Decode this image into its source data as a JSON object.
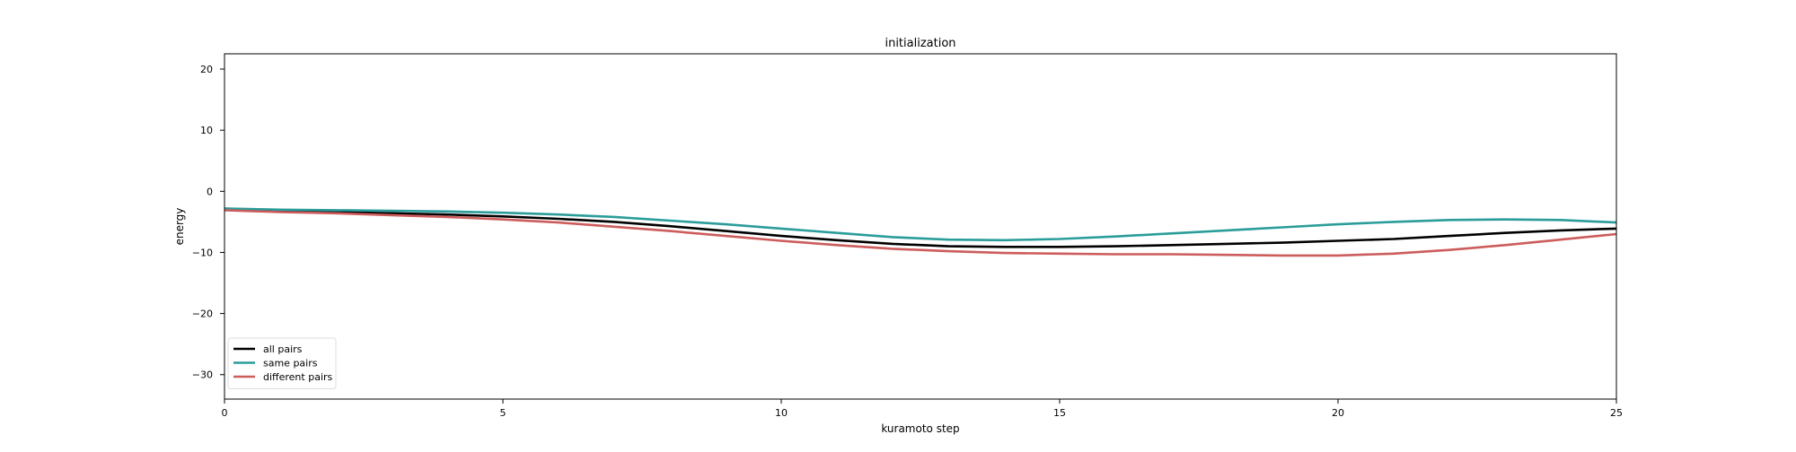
{
  "chart_data": {
    "type": "line",
    "title": "initialization",
    "xlabel": "kuramoto step",
    "ylabel": "energy",
    "xlim": [
      0,
      25
    ],
    "ylim": [
      -34,
      22.5
    ],
    "xticks": [
      0,
      5,
      10,
      15,
      20,
      25
    ],
    "yticks": [
      20,
      10,
      0,
      -10,
      -20,
      -30
    ],
    "xtick_labels": [
      "0",
      "5",
      "10",
      "15",
      "20",
      "25"
    ],
    "ytick_labels": [
      "20",
      "10",
      "0",
      "−10",
      "−20",
      "−30"
    ],
    "grid": false,
    "legend_position": "lower-left",
    "x": [
      0,
      1,
      2,
      3,
      4,
      5,
      6,
      7,
      8,
      9,
      10,
      11,
      12,
      13,
      14,
      15,
      16,
      17,
      18,
      19,
      20,
      21,
      22,
      23,
      24,
      25
    ],
    "series": [
      {
        "name": "all pairs",
        "color": "#000000",
        "values": [
          -3.0,
          -3.2,
          -3.4,
          -3.6,
          -3.8,
          -4.1,
          -4.5,
          -5.0,
          -5.7,
          -6.5,
          -7.3,
          -8.0,
          -8.6,
          -9.0,
          -9.1,
          -9.1,
          -9.0,
          -8.8,
          -8.6,
          -8.4,
          -8.1,
          -7.8,
          -7.3,
          -6.8,
          -6.4,
          -6.1
        ]
      },
      {
        "name": "same pairs",
        "color": "#2a9d9a",
        "values": [
          -2.8,
          -3.0,
          -3.1,
          -3.2,
          -3.3,
          -3.5,
          -3.8,
          -4.2,
          -4.8,
          -5.4,
          -6.1,
          -6.8,
          -7.5,
          -7.9,
          -8.0,
          -7.8,
          -7.4,
          -6.9,
          -6.4,
          -5.9,
          -5.4,
          -5.0,
          -4.7,
          -4.6,
          -4.7,
          -5.1
        ]
      },
      {
        "name": "different pairs",
        "color": "#cd5c5c",
        "values": [
          -3.1,
          -3.4,
          -3.6,
          -3.9,
          -4.2,
          -4.6,
          -5.1,
          -5.8,
          -6.5,
          -7.3,
          -8.1,
          -8.8,
          -9.4,
          -9.8,
          -10.1,
          -10.2,
          -10.3,
          -10.3,
          -10.4,
          -10.5,
          -10.5,
          -10.2,
          -9.6,
          -8.8,
          -7.9,
          -7.0
        ]
      }
    ]
  }
}
